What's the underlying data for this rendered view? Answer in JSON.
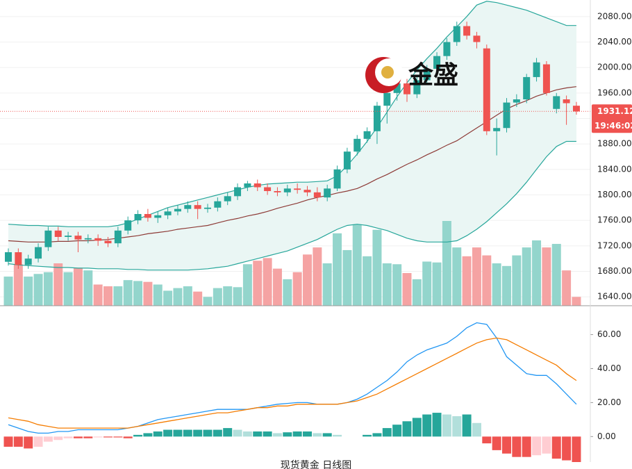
{
  "chart_data": [
    {
      "type": "candlestick",
      "open": [
        1695,
        1710,
        1690,
        1700,
        1718,
        1744,
        1734,
        1736,
        1730,
        1732,
        1728,
        1724,
        1744,
        1760,
        1770,
        1764,
        1768,
        1774,
        1778,
        1784,
        1778,
        1780,
        1790,
        1798,
        1812,
        1818,
        1812,
        1806,
        1804,
        1810,
        1808,
        1804,
        1796,
        1810,
        1840,
        1868,
        1888,
        1900,
        1940,
        1960,
        1975,
        1958,
        1980,
        1998,
        2018,
        2040,
        2065,
        2050,
        2030,
        1900,
        1905,
        1945,
        1950,
        1985,
        2005,
        1935,
        1950,
        1940
      ],
      "high": [
        1716,
        1716,
        1706,
        1724,
        1750,
        1750,
        1742,
        1742,
        1738,
        1738,
        1734,
        1750,
        1766,
        1776,
        1778,
        1774,
        1780,
        1784,
        1790,
        1790,
        1786,
        1796,
        1804,
        1818,
        1822,
        1824,
        1818,
        1812,
        1816,
        1818,
        1814,
        1812,
        1816,
        1846,
        1874,
        1894,
        1906,
        1946,
        1966,
        1980,
        1982,
        1986,
        2004,
        2024,
        2046,
        2072,
        2072,
        2056,
        2036,
        1920,
        1952,
        1958,
        1990,
        2015,
        2010,
        1960,
        1956,
        1946
      ],
      "low": [
        1689,
        1684,
        1684,
        1694,
        1712,
        1728,
        1728,
        1710,
        1724,
        1720,
        1718,
        1718,
        1738,
        1754,
        1758,
        1756,
        1762,
        1768,
        1772,
        1762,
        1772,
        1774,
        1784,
        1792,
        1806,
        1806,
        1800,
        1798,
        1798,
        1802,
        1798,
        1790,
        1790,
        1806,
        1834,
        1862,
        1882,
        1880,
        1912,
        1948,
        1946,
        1952,
        1974,
        1992,
        2012,
        2034,
        2044,
        2030,
        1894,
        1862,
        1898,
        1938,
        1944,
        1978,
        1956,
        1928,
        1910,
        1926
      ],
      "close": [
        1710,
        1690,
        1700,
        1718,
        1744,
        1734,
        1736,
        1730,
        1732,
        1728,
        1724,
        1744,
        1760,
        1770,
        1764,
        1768,
        1774,
        1778,
        1784,
        1778,
        1780,
        1790,
        1798,
        1812,
        1818,
        1812,
        1806,
        1804,
        1810,
        1808,
        1804,
        1796,
        1810,
        1840,
        1868,
        1888,
        1900,
        1940,
        1960,
        1975,
        1958,
        1980,
        1998,
        2018,
        2040,
        2065,
        2050,
        2040,
        1900,
        1905,
        1945,
        1950,
        1985,
        2008,
        1960,
        1955,
        1944,
        1931
      ],
      "up_color": "#26a69a",
      "down_color": "#ef5350",
      "overlays": [
        {
          "color": "#26a69a",
          "values": [
            1754,
            1753,
            1752,
            1752,
            1751,
            1751,
            1750,
            1750,
            1750,
            1750,
            1750,
            1752,
            1756,
            1762,
            1768,
            1774,
            1780,
            1784,
            1788,
            1792,
            1796,
            1800,
            1804,
            1808,
            1812,
            1815,
            1817,
            1818,
            1819,
            1820,
            1820,
            1821,
            1822,
            1830,
            1846,
            1864,
            1884,
            1906,
            1930,
            1954,
            1976,
            1996,
            2014,
            2030,
            2048,
            2064,
            2080,
            2098,
            2104,
            2102,
            2098,
            2094,
            2090,
            2084,
            2078,
            2072,
            2066,
            2066
          ]
        },
        {
          "color": "#8d3a36",
          "values": [
            1728,
            1727,
            1726,
            1726,
            1726,
            1727,
            1727,
            1728,
            1728,
            1729,
            1730,
            1732,
            1734,
            1736,
            1739,
            1741,
            1743,
            1746,
            1748,
            1750,
            1752,
            1756,
            1760,
            1763,
            1767,
            1770,
            1774,
            1779,
            1783,
            1787,
            1792,
            1796,
            1799,
            1803,
            1806,
            1810,
            1817,
            1825,
            1832,
            1840,
            1848,
            1855,
            1863,
            1870,
            1878,
            1885,
            1895,
            1905,
            1915,
            1925,
            1935,
            1942,
            1948,
            1955,
            1960,
            1965,
            1968,
            1970
          ]
        },
        {
          "color": "#26a69a",
          "values": [
            1692,
            1690,
            1689,
            1688,
            1687,
            1686,
            1686,
            1685,
            1685,
            1684,
            1684,
            1684,
            1683,
            1683,
            1682,
            1682,
            1682,
            1682,
            1682,
            1683,
            1684,
            1686,
            1688,
            1692,
            1696,
            1700,
            1704,
            1708,
            1712,
            1718,
            1724,
            1730,
            1738,
            1746,
            1752,
            1754,
            1752,
            1748,
            1744,
            1738,
            1732,
            1728,
            1726,
            1726,
            1726,
            1728,
            1736,
            1746,
            1758,
            1772,
            1786,
            1802,
            1820,
            1840,
            1860,
            1876,
            1884,
            1884
          ]
        }
      ],
      "band_fill": "#eaf6f4",
      "volume": {
        "values": [
          33,
          47,
          33,
          36,
          38,
          48,
          38,
          43,
          40,
          24,
          22,
          22,
          29,
          28,
          27,
          24,
          17,
          20,
          22,
          16,
          10,
          20,
          22,
          21,
          47,
          51,
          54,
          42,
          30,
          38,
          58,
          66,
          48,
          82,
          63,
          92,
          56,
          86,
          48,
          47,
          37,
          30,
          50,
          49,
          96,
          66,
          56,
          66,
          57,
          48,
          45,
          57,
          66,
          74,
          66,
          70,
          40,
          10
        ],
        "up_color": "#93d5cc",
        "down_color": "#f5a3a3"
      },
      "ylim": [
        1626,
        2106
      ],
      "yticks": [
        {
          "value": 2080,
          "label": "2080.00"
        },
        {
          "value": 2040,
          "label": "2040.00"
        },
        {
          "value": 2000,
          "label": "2000.00"
        },
        {
          "value": 1960,
          "label": "1960.00"
        },
        {
          "value": 1920,
          "label": "1920.00"
        },
        {
          "value": 1880,
          "label": "1880.00"
        },
        {
          "value": 1840,
          "label": "1840.00"
        },
        {
          "value": 1800,
          "label": "1800.00"
        },
        {
          "value": 1760,
          "label": "1760.00"
        },
        {
          "value": 1720,
          "label": "1720.00"
        },
        {
          "value": 1680,
          "label": "1680.00"
        },
        {
          "value": 1640,
          "label": "1640.00"
        }
      ],
      "grid": true,
      "last_price": 1931.12,
      "countdown": "19:46:02",
      "last_price_color": "#ef5350"
    },
    {
      "type": "line",
      "series": [
        {
          "color": "#2196f3",
          "values": [
            7,
            5,
            3,
            2,
            2,
            3,
            3,
            4,
            4,
            4,
            4,
            4,
            5,
            6,
            8,
            10,
            11,
            12,
            13,
            14,
            15,
            16,
            16,
            16,
            16,
            17,
            18,
            19,
            19.5,
            20,
            20,
            19,
            19,
            19,
            20,
            22,
            25,
            29,
            33,
            38,
            44,
            48,
            51,
            53,
            55,
            59,
            64,
            67,
            66,
            58,
            47,
            42,
            37,
            36,
            36,
            31,
            25,
            19
          ]
        },
        {
          "color": "#f57c00",
          "values": [
            11,
            10,
            9,
            7,
            6,
            5,
            5,
            5,
            5,
            5,
            5,
            5,
            5,
            6,
            7,
            8,
            9,
            10,
            11,
            12,
            13,
            14,
            14,
            15,
            16,
            17,
            17,
            18,
            18,
            19,
            19,
            19,
            19,
            19,
            20,
            21,
            23,
            25,
            28,
            31,
            34,
            37,
            40,
            43,
            46,
            49,
            52,
            55,
            57,
            58,
            57,
            54,
            51,
            48,
            45,
            42,
            37,
            33
          ]
        }
      ],
      "histogram": {
        "values": [
          -6,
          -6,
          -7,
          -6,
          -3,
          -2,
          -1,
          -1,
          -1,
          -0.5,
          -0.5,
          -0.5,
          -1,
          1,
          2,
          3,
          4,
          4,
          4,
          4,
          4,
          4,
          5,
          4,
          3,
          3,
          3,
          2,
          2.5,
          3,
          3,
          2,
          2,
          1,
          0,
          0,
          1,
          2,
          5,
          7,
          9,
          11,
          13,
          14,
          13,
          12,
          13,
          8,
          -4,
          -8,
          -10,
          -12,
          -12,
          -11,
          -10,
          -13,
          -14,
          -15
        ],
        "rise_color": "#26a69a",
        "fall_color": "#b2dfdb",
        "neg_fall_color": "#ef5350",
        "neg_rise_color": "#ffcdd2"
      },
      "ylim": [
        -15,
        77
      ],
      "yticks": [
        {
          "value": 60,
          "label": "60.00"
        },
        {
          "value": 40,
          "label": "40.00"
        },
        {
          "value": 20,
          "label": "20.00"
        },
        {
          "value": 0,
          "label": "0.00"
        }
      ]
    }
  ],
  "logo_text": "金盛",
  "caption": "现货黄金 日线图"
}
